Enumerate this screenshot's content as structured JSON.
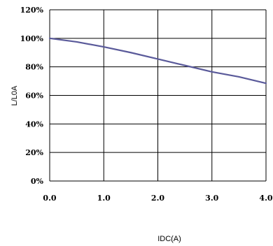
{
  "chart_data": {
    "type": "line",
    "title": "",
    "xlabel": "IDC(A)",
    "ylabel": "L/L0A",
    "xlim": [
      0,
      4
    ],
    "ylim": [
      0,
      120
    ],
    "xticks": [
      0,
      1,
      2,
      3,
      4
    ],
    "xtick_labels": [
      "0.0",
      "1.0",
      "2.0",
      "3.0",
      "4.0"
    ],
    "yticks": [
      0,
      20,
      40,
      60,
      80,
      100,
      120
    ],
    "ytick_labels": [
      "0%",
      "20%",
      "40%",
      "60%",
      "80%",
      "100%",
      "120%"
    ],
    "grid": true,
    "series": [
      {
        "color": "#5a5a9a",
        "x": [
          0,
          0.5,
          1.0,
          1.5,
          2.0,
          2.5,
          3.0,
          3.5,
          4.0
        ],
        "y": [
          100,
          97.5,
          94,
          90,
          85.5,
          81,
          76.5,
          73,
          68.5
        ]
      }
    ]
  }
}
